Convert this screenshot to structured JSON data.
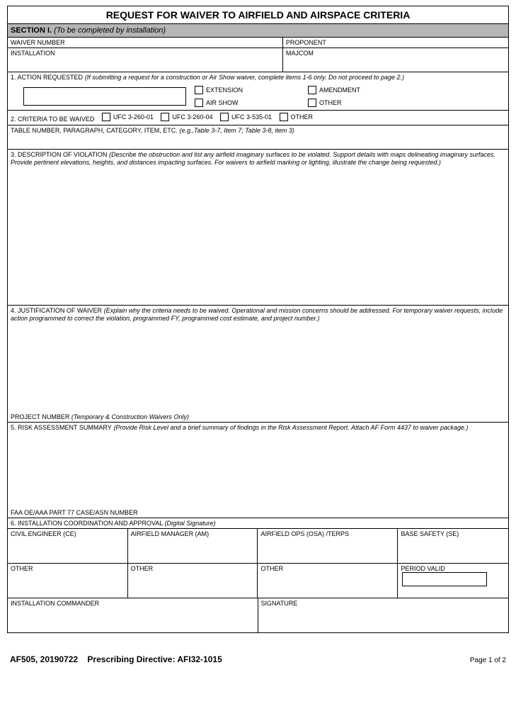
{
  "title": "REQUEST FOR WAIVER TO AIRFIELD AND AIRSPACE CRITERIA",
  "section1": {
    "label": "SECTION I.",
    "note": "(To be completed by installation)"
  },
  "header_cells": {
    "waiver_number": "WAIVER NUMBER",
    "proponent": "PROPONENT",
    "installation": "INSTALLATION",
    "majcom": "MAJCOM"
  },
  "item1": {
    "label": "1. ACTION REQUESTED",
    "hint": "(If submitting a request for a construction or Air Show waiver, complete items 1-6 only.  Do not proceed to page 2.)",
    "options": {
      "extension": "EXTENSION",
      "amendment": "AMENDMENT",
      "airshow": "AIR SHOW",
      "other": "OTHER"
    }
  },
  "item2": {
    "label": "2. CRITERIA TO BE WAIVED",
    "opts": {
      "ufc1": "UFC 3-260-01",
      "ufc2": "UFC 3-260-04",
      "ufc3": "UFC 3-535-01",
      "other": "OTHER"
    }
  },
  "table_num": {
    "label": "TABLE NUMBER, PARAGRAPH, CATEGORY, ITEM, ETC.",
    "hint": "(e.g.,Table 3-7, Item 7; Table 3-8, item 3)"
  },
  "item3": {
    "label": "3. DESCRIPTION OF VIOLATION",
    "hint": "(Describe the obstruction and list any airfield imaginary surfaces to be violated.  Support details with maps delineating imaginary surfaces. Provide pertinent elevations, heights, and distances impacting surfaces. For waivers to airfield marking or lighting, illustrate the change being requested.)"
  },
  "item4": {
    "label": "4. JUSTIFICATION OF WAIVER",
    "hint": "(Explain why the criteria needs to be waived.  Operational and mission concerns should be addressed.  For temporary waiver requests, include action programmed to correct the violation, programmed FY, programmed cost estimate, and project number.)"
  },
  "project_number": {
    "label": "PROJECT NUMBER",
    "hint": "(Temporary & Construction Waivers Only)"
  },
  "item5": {
    "label": "5. RISK ASSESSMENT SUMMARY",
    "hint": "(Provide Risk Level and a brief summary of findings in the Risk Assessment Report.  Attach AF Form 4437 to waiver package.)"
  },
  "faa": "FAA OE/AAA PART 77 CASE/ASN NUMBER",
  "item6": {
    "label": "6. INSTALLATION COORDINATION AND APPROVAL",
    "hint": "(Digital Signature)"
  },
  "sig": {
    "ce": "CIVIL ENGINEER (CE)",
    "am": "AIRFIELD MANAGER (AM)",
    "osa": "AIRFIELD OPS (OSA) /TERPS",
    "se": "BASE SAFETY (SE)",
    "other": "OTHER",
    "period": "PERIOD VALID",
    "commander": "INSTALLATION COMMANDER",
    "signature": "SIGNATURE"
  },
  "footer": {
    "form": "AF505, 20190722",
    "directive_label": "Prescribing Directive:",
    "directive": "AFI32-1015",
    "page": "Page 1 of 2"
  }
}
